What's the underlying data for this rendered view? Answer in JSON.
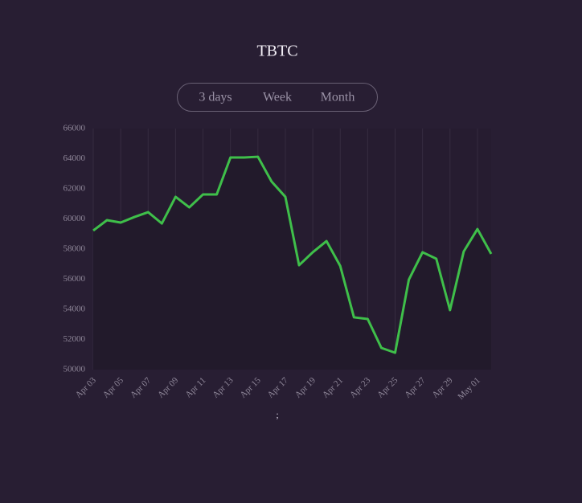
{
  "chart_data": {
    "type": "line",
    "title": "TBTC",
    "buttons": [
      "3 days",
      "Week",
      "Month"
    ],
    "categories": [
      "Apr 03",
      null,
      "Apr 05",
      null,
      "Apr 07",
      null,
      "Apr 09",
      null,
      "Apr 11",
      null,
      "Apr 13",
      null,
      "Apr 15",
      null,
      "Apr 17",
      null,
      "Apr 19",
      null,
      "Apr 21",
      null,
      "Apr 23",
      null,
      "Apr 25",
      null,
      "Apr 27",
      null,
      "Apr 29",
      null,
      "May 01",
      null
    ],
    "values": [
      59230,
      59920,
      59760,
      60130,
      60450,
      59700,
      61470,
      60770,
      61630,
      61630,
      64080,
      64080,
      64130,
      62480,
      61470,
      56930,
      57790,
      58530,
      56880,
      53470,
      53360,
      51440,
      51120,
      55970,
      57790,
      57360,
      53950,
      57840,
      59330,
      57680
    ],
    "color": "#3fbf4a",
    "ylim": [
      50000,
      66000
    ],
    "yticks": [
      50000,
      52000,
      54000,
      56000,
      58000,
      60000,
      62000,
      64000,
      66000
    ],
    "grid": true,
    "footnote": ";"
  }
}
